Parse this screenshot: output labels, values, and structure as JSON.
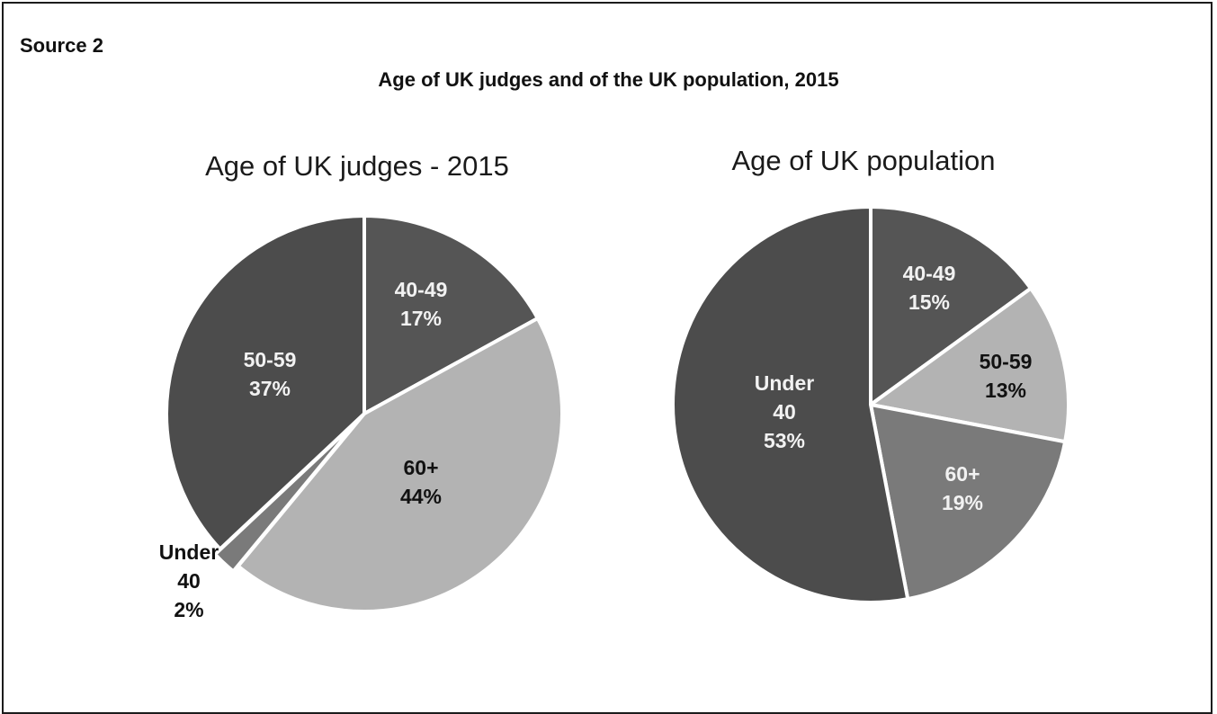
{
  "page": {
    "source_label": "Source 2",
    "main_title": "Age of UK judges and of the UK population, 2015"
  },
  "colors": {
    "dark": "#555555",
    "darker": "#4c4c4c",
    "light": "#b3b3b3",
    "mid": "#7a7a7a",
    "label_light": "#f2f2f2",
    "label_dark": "#111111",
    "separator": "#ffffff"
  },
  "chart_data": [
    {
      "type": "pie",
      "title": "Age of UK judges - 2015",
      "slices": [
        {
          "label": "40-49",
          "value": 17,
          "display": "17%",
          "color": "#555555",
          "label_color": "#f2f2f2"
        },
        {
          "label": "60+",
          "value": 44,
          "display": "44%",
          "color": "#b3b3b3",
          "label_color": "#111111"
        },
        {
          "label": "Under 40",
          "value": 2,
          "display": "2%",
          "color": "#7a7a7a",
          "label_color": "#111111",
          "label_lines": [
            "Under",
            "40",
            "2%"
          ]
        },
        {
          "label": "50-59",
          "value": 37,
          "display": "37%",
          "color": "#4c4c4c",
          "label_color": "#f2f2f2"
        }
      ]
    },
    {
      "type": "pie",
      "title": "Age of UK population",
      "slices": [
        {
          "label": "40-49",
          "value": 15,
          "display": "15%",
          "color": "#555555",
          "label_color": "#f2f2f2"
        },
        {
          "label": "50-59",
          "value": 13,
          "display": "13%",
          "color": "#b3b3b3",
          "label_color": "#111111"
        },
        {
          "label": "60+",
          "value": 19,
          "display": "19%",
          "color": "#7a7a7a",
          "label_color": "#f2f2f2"
        },
        {
          "label": "Under 40",
          "value": 53,
          "display": "53%",
          "color": "#4c4c4c",
          "label_color": "#f2f2f2",
          "label_lines": [
            "Under",
            "40",
            "53%"
          ]
        }
      ]
    }
  ]
}
